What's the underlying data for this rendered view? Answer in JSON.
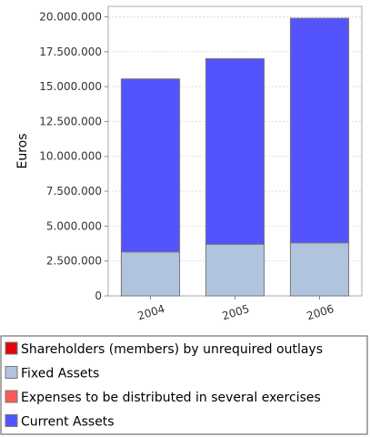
{
  "chart_data": {
    "type": "bar",
    "stacked": true,
    "categories": [
      "2004",
      "2005",
      "2006"
    ],
    "series": [
      {
        "name": "Shareholders (members) by unrequired outlays",
        "color": "#e0060c",
        "values": [
          0,
          0,
          0
        ]
      },
      {
        "name": "Fixed Assets",
        "color": "#b0c4de",
        "values": [
          3150000,
          3700000,
          3800000
        ]
      },
      {
        "name": "Expenses to be distributed in several exercises",
        "color": "#ff5a5a",
        "values": [
          0,
          0,
          0
        ]
      },
      {
        "name": "Current Assets",
        "color": "#5454ff",
        "values": [
          12400000,
          13300000,
          16100000
        ]
      }
    ],
    "ylabel": "Euros",
    "ylim": [
      0,
      20750000
    ],
    "yticks": [
      0,
      2500000,
      5000000,
      7500000,
      10000000,
      12500000,
      15000000,
      17500000,
      20000000
    ],
    "ytick_labels": [
      "0",
      "2.500.000",
      "5.000.000",
      "7.500.000",
      "10.000.000",
      "12.500.000",
      "15.000.000",
      "17.500.000",
      "20.000.000"
    ],
    "grid": true,
    "legend_position": "bottom"
  }
}
